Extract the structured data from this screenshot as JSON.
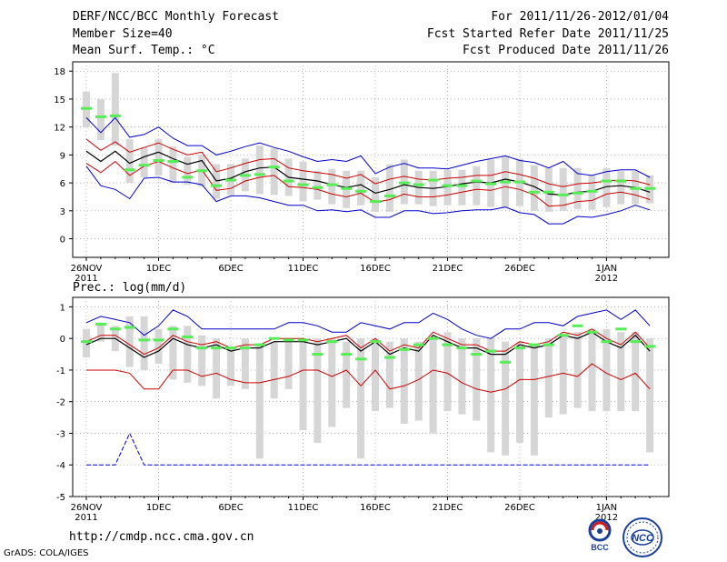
{
  "header": {
    "title": "DERF/NCC/BCC Monthly Forecast",
    "member_size": "Member Size=40",
    "variable": "Mean Surf. Temp.: °C",
    "forecast_period": "For 2011/11/26-2012/01/04",
    "started_date": "Fcst Started Refer Date 2011/11/25",
    "produced_date": "Fcst Produced Date 2011/11/26"
  },
  "footer": {
    "url": "http://cmdp.ncc.cma.gov.cn",
    "grads_credit": "GrADS: COLA/IGES",
    "logo_bcc_label": "BCC",
    "logo_ncc_label": "NCC"
  },
  "colors": {
    "box": "#d6d6d6",
    "median": "#55ee55",
    "mean": "#000000",
    "spread": "#cc0000",
    "range": "#0000cc",
    "grid": "#888888"
  },
  "chart_data": [
    {
      "type": "box-line",
      "title": "Mean Surf. Temp.: °C",
      "ylim": [
        -2,
        19
      ],
      "yticks": [
        0,
        3,
        6,
        9,
        12,
        15,
        18
      ],
      "x_start_day": 0,
      "x_end_day": 39,
      "xticks": [
        {
          "day": 0,
          "label": "26NOV",
          "sub": "2011"
        },
        {
          "day": 5,
          "label": "1DEC",
          "sub": ""
        },
        {
          "day": 10,
          "label": "6DEC",
          "sub": ""
        },
        {
          "day": 15,
          "label": "11DEC",
          "sub": ""
        },
        {
          "day": 20,
          "label": "16DEC",
          "sub": ""
        },
        {
          "day": 25,
          "label": "21DEC",
          "sub": ""
        },
        {
          "day": 30,
          "label": "26DEC",
          "sub": ""
        },
        {
          "day": 36,
          "label": "1JAN",
          "sub": "2012"
        }
      ],
      "series": {
        "box_top": [
          15.8,
          15.0,
          17.8,
          10.7,
          9.8,
          10.7,
          9.9,
          8.8,
          9.0,
          8.0,
          8.0,
          8.6,
          10.0,
          9.7,
          8.6,
          8.3,
          7.3,
          7.5,
          7.3,
          7.3,
          6.6,
          8.0,
          8.5,
          7.3,
          7.3,
          7.4,
          7.4,
          7.8,
          8.5,
          8.9,
          8.6,
          7.9,
          7.6,
          7.6,
          7.6,
          6.8,
          7.6,
          7.3,
          7.3,
          6.8
        ],
        "box_bottom": [
          12.0,
          10.6,
          10.0,
          6.0,
          6.6,
          6.8,
          6.0,
          5.8,
          5.6,
          4.3,
          4.7,
          5.1,
          4.8,
          4.7,
          4.6,
          4.0,
          4.2,
          3.7,
          3.3,
          3.6,
          2.9,
          2.9,
          3.7,
          3.7,
          3.5,
          3.6,
          3.6,
          3.6,
          3.4,
          3.4,
          3.5,
          3.0,
          2.9,
          3.0,
          3.2,
          3.1,
          3.4,
          3.7,
          3.7,
          3.8
        ],
        "median": [
          14.0,
          13.1,
          13.2,
          7.4,
          7.9,
          8.4,
          8.3,
          6.6,
          7.3,
          5.7,
          6.3,
          6.8,
          6.9,
          7.7,
          6.2,
          5.8,
          5.5,
          5.8,
          5.4,
          5.1,
          4.0,
          4.6,
          6.0,
          5.8,
          6.3,
          5.7,
          5.7,
          6.2,
          5.9,
          6.1,
          6.1,
          5.0,
          5.0,
          4.7,
          4.9,
          5.1,
          6.2,
          6.2,
          5.4,
          5.4
        ],
        "mean": [
          9.4,
          8.3,
          9.4,
          8.1,
          8.8,
          9.3,
          8.6,
          8.0,
          8.4,
          6.2,
          6.5,
          7.2,
          7.6,
          7.7,
          6.6,
          6.4,
          6.2,
          5.8,
          5.5,
          5.8,
          4.9,
          5.3,
          5.8,
          5.5,
          5.4,
          5.6,
          5.9,
          6.1,
          6.0,
          6.4,
          6.1,
          5.6,
          4.8,
          4.7,
          5.0,
          5.1,
          5.6,
          5.7,
          5.5,
          5.0
        ],
        "upper": [
          10.7,
          9.5,
          10.4,
          9.3,
          9.8,
          10.3,
          9.6,
          9.0,
          9.3,
          7.2,
          7.6,
          8.1,
          8.5,
          8.6,
          7.6,
          7.3,
          7.1,
          6.9,
          6.5,
          6.9,
          5.9,
          6.4,
          6.7,
          6.4,
          6.3,
          6.5,
          6.6,
          6.8,
          6.8,
          7.2,
          6.9,
          6.5,
          5.9,
          5.6,
          5.9,
          6.0,
          6.2,
          6.3,
          6.2,
          5.8
        ],
        "lower": [
          8.1,
          7.1,
          8.3,
          6.8,
          7.8,
          8.3,
          7.6,
          7.0,
          7.4,
          5.2,
          5.4,
          6.2,
          6.6,
          6.8,
          5.6,
          5.5,
          5.3,
          4.8,
          4.5,
          4.9,
          3.9,
          4.2,
          4.8,
          4.5,
          4.5,
          4.7,
          5.0,
          5.3,
          5.2,
          5.6,
          5.3,
          4.7,
          3.5,
          3.6,
          4.0,
          4.1,
          4.8,
          5.0,
          4.7,
          4.2
        ],
        "max": [
          13.0,
          11.4,
          13.0,
          10.9,
          11.2,
          12.0,
          10.8,
          10.0,
          10.0,
          9.0,
          9.4,
          9.9,
          10.3,
          9.8,
          9.4,
          8.8,
          8.3,
          8.5,
          8.3,
          8.9,
          7.0,
          7.7,
          8.1,
          7.6,
          7.6,
          7.5,
          7.9,
          8.3,
          8.6,
          8.9,
          8.4,
          8.2,
          7.6,
          8.3,
          7.0,
          6.8,
          7.2,
          7.4,
          7.4,
          6.6
        ],
        "min": [
          7.8,
          5.7,
          5.3,
          4.3,
          6.5,
          6.6,
          6.1,
          6.1,
          5.8,
          4.0,
          4.6,
          4.6,
          4.4,
          4.0,
          3.6,
          3.6,
          3.0,
          3.1,
          2.9,
          3.1,
          2.3,
          2.3,
          3.0,
          3.0,
          2.7,
          2.8,
          3.0,
          3.1,
          3.1,
          3.4,
          2.8,
          2.6,
          1.6,
          1.6,
          2.4,
          2.3,
          2.6,
          3.0,
          3.6,
          3.1
        ]
      }
    },
    {
      "type": "box-line",
      "title": "Prec.: log(mm/d)",
      "ylim": [
        -5,
        1.3
      ],
      "yticks": [
        1,
        0,
        -1,
        -2,
        -3,
        -4,
        -5
      ],
      "x_start_day": 0,
      "x_end_day": 39,
      "xticks": [
        {
          "day": 0,
          "label": "26NOV",
          "sub": "2011"
        },
        {
          "day": 5,
          "label": "1DEC",
          "sub": ""
        },
        {
          "day": 10,
          "label": "6DEC",
          "sub": ""
        },
        {
          "day": 15,
          "label": "11DEC",
          "sub": ""
        },
        {
          "day": 20,
          "label": "16DEC",
          "sub": ""
        },
        {
          "day": 25,
          "label": "21DEC",
          "sub": ""
        },
        {
          "day": 30,
          "label": "26DEC",
          "sub": ""
        },
        {
          "day": 36,
          "label": "1JAN",
          "sub": "2012"
        }
      ],
      "series": {
        "box_top": [
          0.3,
          0.5,
          0.4,
          0.7,
          0.7,
          0.3,
          0.4,
          0.4,
          0.1,
          0.0,
          -0.3,
          0.0,
          -0.2,
          -0.1,
          0.0,
          0.0,
          0.0,
          0.0,
          -0.1,
          0.0,
          0.0,
          -0.1,
          0.0,
          -0.1,
          0.0,
          0.2,
          0.0,
          0.0,
          0.0,
          -0.1,
          -0.1,
          -0.2,
          0.0,
          0.1,
          0.2,
          0.3,
          0.3,
          0.2,
          0.2,
          0.0
        ],
        "box_bottom": [
          -0.6,
          -0.1,
          -0.4,
          -0.9,
          -1.0,
          -0.8,
          -1.3,
          -1.4,
          -1.5,
          -1.9,
          -1.5,
          -1.6,
          -3.8,
          -1.9,
          -1.6,
          -2.9,
          -3.3,
          -2.8,
          -2.2,
          -3.8,
          -2.3,
          -2.2,
          -2.7,
          -2.6,
          -3.0,
          -2.3,
          -2.4,
          -2.6,
          -3.6,
          -3.7,
          -3.3,
          -3.7,
          -2.5,
          -2.4,
          -2.2,
          -2.3,
          -2.3,
          -2.3,
          -2.3,
          -3.6
        ],
        "median": [
          -0.1,
          0.45,
          0.3,
          0.35,
          -0.05,
          -0.05,
          0.3,
          0.05,
          -0.3,
          -0.3,
          -0.3,
          -0.3,
          -0.2,
          0.0,
          -0.05,
          -0.05,
          -0.5,
          -0.1,
          -0.5,
          -0.65,
          -0.1,
          -0.6,
          -0.35,
          -0.2,
          0.0,
          -0.2,
          -0.3,
          -0.5,
          -0.4,
          -0.75,
          -0.3,
          -0.2,
          -0.2,
          0.1,
          0.4,
          0.2,
          -0.1,
          0.3,
          -0.1,
          -0.25
        ],
        "mean": [
          -0.2,
          0.0,
          0.0,
          -0.3,
          -0.6,
          -0.4,
          0.0,
          -0.2,
          -0.3,
          -0.2,
          -0.4,
          -0.3,
          -0.3,
          -0.1,
          -0.1,
          -0.1,
          -0.2,
          -0.1,
          0.0,
          -0.4,
          -0.1,
          -0.5,
          -0.3,
          -0.4,
          0.1,
          -0.1,
          -0.3,
          -0.3,
          -0.5,
          -0.5,
          -0.2,
          -0.3,
          -0.2,
          0.1,
          0.0,
          0.2,
          -0.1,
          -0.3,
          0.1,
          -0.4
        ],
        "upper": [
          -0.1,
          0.1,
          0.1,
          -0.2,
          -0.5,
          -0.3,
          0.1,
          -0.1,
          -0.2,
          -0.1,
          -0.3,
          -0.2,
          -0.2,
          0.0,
          0.0,
          0.0,
          -0.1,
          0.0,
          0.1,
          -0.3,
          0.0,
          -0.4,
          -0.2,
          -0.3,
          0.2,
          0.0,
          -0.2,
          -0.2,
          -0.4,
          -0.4,
          -0.1,
          -0.2,
          -0.1,
          0.2,
          0.1,
          0.3,
          0.0,
          -0.2,
          0.2,
          -0.3
        ],
        "lower": [
          -1.0,
          -1.0,
          -1.0,
          -1.1,
          -1.6,
          -1.6,
          -1.0,
          -1.0,
          -1.2,
          -1.1,
          -1.3,
          -1.4,
          -1.4,
          -1.3,
          -1.2,
          -1.0,
          -1.0,
          -1.2,
          -1.0,
          -1.5,
          -1.0,
          -1.6,
          -1.5,
          -1.3,
          -1.0,
          -1.1,
          -1.4,
          -1.6,
          -1.7,
          -1.6,
          -1.3,
          -1.3,
          -1.2,
          -1.1,
          -1.2,
          -0.8,
          -1.1,
          -1.3,
          -1.1,
          -1.6
        ],
        "max": [
          0.5,
          0.7,
          0.6,
          0.5,
          0.1,
          0.4,
          0.9,
          0.7,
          0.3,
          0.3,
          0.3,
          0.3,
          0.3,
          0.3,
          0.5,
          0.5,
          0.4,
          0.2,
          0.2,
          0.5,
          0.4,
          0.3,
          0.5,
          0.5,
          0.8,
          0.6,
          0.3,
          0.1,
          0.0,
          0.3,
          0.3,
          0.5,
          0.5,
          0.4,
          0.7,
          0.8,
          0.9,
          0.6,
          0.9,
          0.4
        ],
        "min": [
          -4.0,
          -4.0,
          -4.0,
          -3.0,
          -4.0,
          -4.0,
          -4.0,
          -4.0,
          -4.0,
          -4.0,
          -4.0,
          -4.0,
          -4.0,
          -4.0,
          -4.0,
          -4.0,
          -4.0,
          -4.0,
          -4.0,
          -4.0,
          -4.0,
          -4.0,
          -4.0,
          -4.0,
          -4.0,
          -4.0,
          -4.0,
          -4.0,
          -4.0,
          -4.0,
          -4.0,
          -4.0,
          -4.0,
          -4.0,
          -4.0,
          -4.0,
          -4.0,
          -4.0,
          -4.0,
          -4.0
        ]
      }
    }
  ]
}
